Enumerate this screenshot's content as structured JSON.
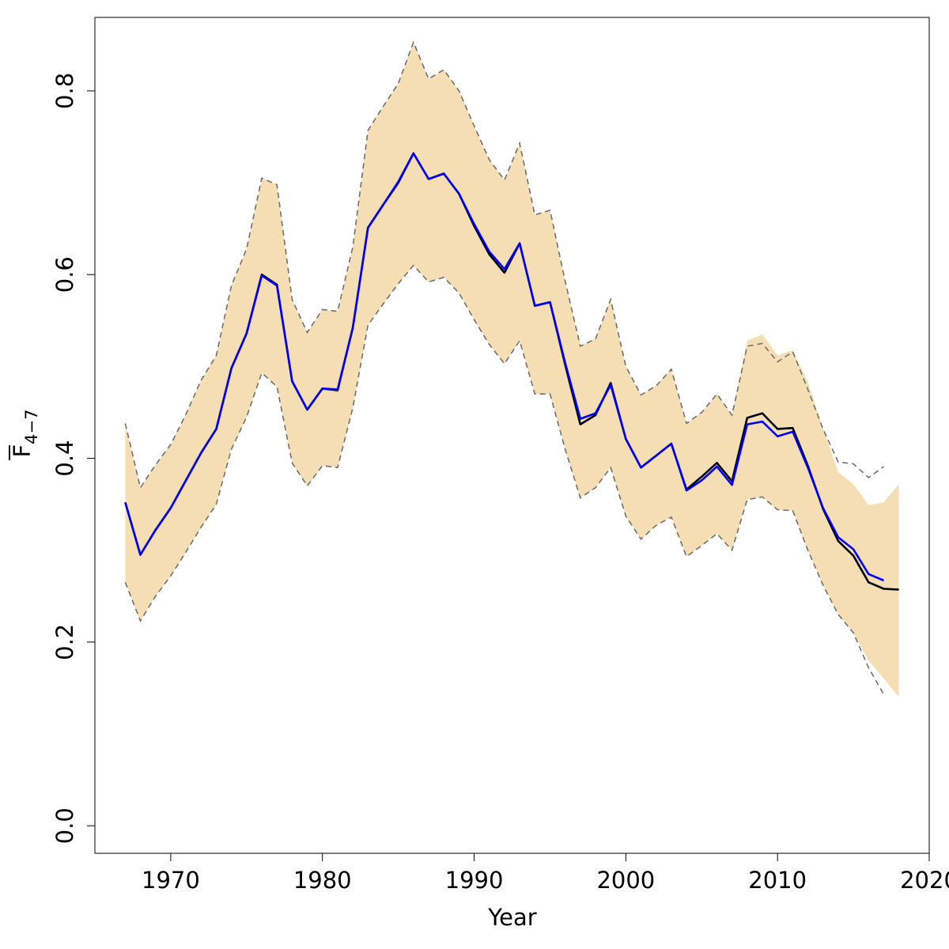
{
  "chart_data": {
    "type": "line",
    "xlabel": "Year",
    "ylabel": {
      "main": "F",
      "subscript": "4−7"
    },
    "xlim": [
      1965,
      2020
    ],
    "ylim": [
      -0.03,
      0.88
    ],
    "x_ticks": [
      1970,
      1980,
      1990,
      2000,
      2010,
      2020
    ],
    "y_ticks": [
      0.0,
      0.2,
      0.4,
      0.6,
      0.8
    ],
    "x_tick_labels": [
      "1970",
      "1980",
      "1990",
      "2000",
      "2010",
      "2020"
    ],
    "y_tick_labels": [
      "0.0",
      "0.2",
      "0.4",
      "0.6",
      "0.8"
    ],
    "grid": false,
    "colors": {
      "band": "#f5deb3",
      "band_edge": "#707070",
      "current": "#000000",
      "previous": "#0000ff"
    },
    "band": {
      "years": [
        1967,
        1968,
        1969,
        1970,
        1971,
        1972,
        1973,
        1974,
        1975,
        1976,
        1977,
        1978,
        1979,
        1980,
        1981,
        1982,
        1983,
        1984,
        1985,
        1986,
        1987,
        1988,
        1989,
        1990,
        1991,
        1992,
        1993,
        1994,
        1995,
        1996,
        1997,
        1998,
        1999,
        2000,
        2001,
        2002,
        2003,
        2004,
        2005,
        2006,
        2007,
        2008,
        2009,
        2010,
        2011,
        2012,
        2013,
        2014,
        2015,
        2016,
        2017,
        2018
      ],
      "lower": [
        0.265,
        0.223,
        0.25,
        0.272,
        0.298,
        0.325,
        0.35,
        0.41,
        0.445,
        0.493,
        0.478,
        0.395,
        0.37,
        0.392,
        0.39,
        0.455,
        0.545,
        0.568,
        0.59,
        0.61,
        0.592,
        0.597,
        0.58,
        0.551,
        0.524,
        0.503,
        0.528,
        0.47,
        0.47,
        0.41,
        0.357,
        0.368,
        0.39,
        0.337,
        0.312,
        0.327,
        0.336,
        0.293,
        0.305,
        0.318,
        0.3,
        0.355,
        0.358,
        0.344,
        0.343,
        0.3,
        0.262,
        0.23,
        0.21,
        0.18,
        0.16,
        0.14
      ],
      "upper": [
        0.438,
        0.368,
        0.393,
        0.415,
        0.448,
        0.485,
        0.512,
        0.588,
        0.628,
        0.705,
        0.698,
        0.573,
        0.537,
        0.562,
        0.56,
        0.63,
        0.757,
        0.783,
        0.808,
        0.853,
        0.813,
        0.823,
        0.8,
        0.762,
        0.725,
        0.703,
        0.743,
        0.665,
        0.67,
        0.593,
        0.522,
        0.53,
        0.573,
        0.5,
        0.469,
        0.479,
        0.497,
        0.438,
        0.45,
        0.47,
        0.447,
        0.528,
        0.535,
        0.512,
        0.518,
        0.483,
        0.433,
        0.385,
        0.372,
        0.349,
        0.352,
        0.372
      ]
    },
    "band_dashed_edges": {
      "years": [
        1967,
        1968,
        1969,
        1970,
        1971,
        1972,
        1973,
        1974,
        1975,
        1976,
        1977,
        1978,
        1979,
        1980,
        1981,
        1982,
        1983,
        1984,
        1985,
        1986,
        1987,
        1988,
        1989,
        1990,
        1991,
        1992,
        1993,
        1994,
        1995,
        1996,
        1997,
        1998,
        1999,
        2000,
        2001,
        2002,
        2003,
        2004,
        2005,
        2006,
        2007,
        2008,
        2009,
        2010,
        2011,
        2012,
        2013,
        2014,
        2015,
        2016,
        2017
      ],
      "lower": [
        0.265,
        0.223,
        0.25,
        0.272,
        0.298,
        0.325,
        0.35,
        0.41,
        0.445,
        0.493,
        0.478,
        0.395,
        0.37,
        0.392,
        0.39,
        0.455,
        0.545,
        0.568,
        0.59,
        0.61,
        0.592,
        0.597,
        0.58,
        0.551,
        0.524,
        0.503,
        0.528,
        0.47,
        0.47,
        0.41,
        0.357,
        0.368,
        0.39,
        0.337,
        0.312,
        0.327,
        0.336,
        0.293,
        0.305,
        0.318,
        0.3,
        0.355,
        0.358,
        0.344,
        0.343,
        0.3,
        0.262,
        0.23,
        0.21,
        0.172,
        0.143
      ],
      "upper": [
        0.438,
        0.368,
        0.393,
        0.415,
        0.448,
        0.485,
        0.512,
        0.588,
        0.628,
        0.705,
        0.698,
        0.573,
        0.537,
        0.562,
        0.56,
        0.63,
        0.757,
        0.783,
        0.808,
        0.853,
        0.813,
        0.823,
        0.8,
        0.762,
        0.725,
        0.703,
        0.743,
        0.665,
        0.67,
        0.593,
        0.522,
        0.53,
        0.573,
        0.5,
        0.469,
        0.479,
        0.497,
        0.438,
        0.45,
        0.47,
        0.447,
        0.522,
        0.525,
        0.505,
        0.516,
        0.475,
        0.432,
        0.396,
        0.394,
        0.379,
        0.391
      ]
    },
    "series": [
      {
        "style": "black",
        "x": [
          1967,
          1968,
          1969,
          1970,
          1971,
          1972,
          1973,
          1974,
          1975,
          1976,
          1977,
          1978,
          1979,
          1980,
          1981,
          1982,
          1983,
          1984,
          1985,
          1986,
          1987,
          1988,
          1989,
          1990,
          1991,
          1992,
          1993,
          1994,
          1995,
          1996,
          1997,
          1998,
          1999,
          2000,
          2001,
          2002,
          2003,
          2004,
          2005,
          2006,
          2007,
          2008,
          2009,
          2010,
          2011,
          2012,
          2013,
          2014,
          2015,
          2016,
          2017,
          2018
        ],
        "y": [
          0.352,
          0.295,
          0.322,
          0.346,
          0.376,
          0.406,
          0.432,
          0.498,
          0.536,
          0.6,
          0.589,
          0.484,
          0.453,
          0.476,
          0.474,
          0.542,
          0.651,
          0.676,
          0.7,
          0.732,
          0.704,
          0.71,
          0.688,
          0.653,
          0.622,
          0.602,
          0.634,
          0.566,
          0.57,
          0.502,
          0.437,
          0.447,
          0.482,
          0.421,
          0.39,
          0.403,
          0.416,
          0.366,
          0.38,
          0.395,
          0.375,
          0.444,
          0.449,
          0.432,
          0.433,
          0.392,
          0.345,
          0.31,
          0.294,
          0.265,
          0.258,
          0.257
        ]
      },
      {
        "style": "blue",
        "x": [
          1967,
          1968,
          1969,
          1970,
          1971,
          1972,
          1973,
          1974,
          1975,
          1976,
          1977,
          1978,
          1979,
          1980,
          1981,
          1982,
          1983,
          1984,
          1985,
          1986,
          1987,
          1988,
          1989,
          1990,
          1991,
          1992,
          1993,
          1994,
          1995,
          1996,
          1997,
          1998,
          1999,
          2000,
          2001,
          2002,
          2003,
          2004,
          2005,
          2006,
          2007,
          2008,
          2009,
          2010,
          2011,
          2012,
          2013,
          2014,
          2015,
          2016,
          2017
        ],
        "y": [
          0.352,
          0.295,
          0.322,
          0.346,
          0.376,
          0.406,
          0.432,
          0.498,
          0.536,
          0.599,
          0.588,
          0.484,
          0.453,
          0.476,
          0.475,
          0.542,
          0.651,
          0.676,
          0.701,
          0.732,
          0.704,
          0.71,
          0.688,
          0.655,
          0.625,
          0.606,
          0.634,
          0.566,
          0.57,
          0.504,
          0.443,
          0.449,
          0.48,
          0.421,
          0.39,
          0.403,
          0.416,
          0.365,
          0.376,
          0.391,
          0.371,
          0.437,
          0.44,
          0.424,
          0.429,
          0.39,
          0.346,
          0.314,
          0.301,
          0.274,
          0.267
        ]
      }
    ]
  }
}
